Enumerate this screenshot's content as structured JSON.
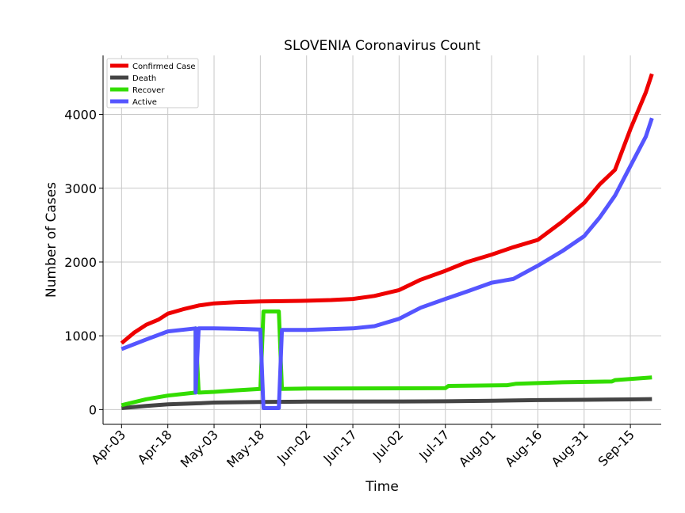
{
  "chart_data": {
    "type": "line",
    "title": "SLOVENIA Coronavirus Count",
    "xlabel": "Time",
    "ylabel": "Number of Cases",
    "ylim": [
      -200,
      4800
    ],
    "xlim": [
      "2020-03-28",
      "2020-09-25"
    ],
    "grid": true,
    "legend": "top-left",
    "x_ticks": [
      "2020-04-03",
      "2020-04-18",
      "2020-05-03",
      "2020-05-18",
      "2020-06-02",
      "2020-06-17",
      "2020-07-02",
      "2020-07-17",
      "2020-08-01",
      "2020-08-16",
      "2020-08-31",
      "2020-09-15"
    ],
    "x_tick_labels": [
      "Apr-03",
      "Apr-18",
      "May-03",
      "May-18",
      "Jun-02",
      "Jun-17",
      "Jul-02",
      "Jul-17",
      "Aug-01",
      "Aug-16",
      "Aug-31",
      "Sep-15"
    ],
    "y_ticks": [
      0,
      1000,
      2000,
      3000,
      4000
    ],
    "y_tick_labels": [
      "0",
      "1000",
      "2000",
      "3000",
      "4000"
    ],
    "series": [
      {
        "name": "Confirmed Case",
        "color": "#ee0000",
        "points": [
          [
            "2020-04-03",
            900
          ],
          [
            "2020-04-07",
            1040
          ],
          [
            "2020-04-11",
            1150
          ],
          [
            "2020-04-15",
            1220
          ],
          [
            "2020-04-18",
            1300
          ],
          [
            "2020-04-23",
            1360
          ],
          [
            "2020-04-28",
            1410
          ],
          [
            "2020-05-03",
            1440
          ],
          [
            "2020-05-10",
            1455
          ],
          [
            "2020-05-18",
            1465
          ],
          [
            "2020-05-25",
            1470
          ],
          [
            "2020-06-02",
            1475
          ],
          [
            "2020-06-10",
            1485
          ],
          [
            "2020-06-17",
            1500
          ],
          [
            "2020-06-24",
            1540
          ],
          [
            "2020-07-02",
            1620
          ],
          [
            "2020-07-09",
            1760
          ],
          [
            "2020-07-17",
            1880
          ],
          [
            "2020-07-24",
            2000
          ],
          [
            "2020-08-01",
            2100
          ],
          [
            "2020-08-08",
            2200
          ],
          [
            "2020-08-16",
            2300
          ],
          [
            "2020-08-24",
            2550
          ],
          [
            "2020-08-31",
            2800
          ],
          [
            "2020-09-05",
            3050
          ],
          [
            "2020-09-10",
            3250
          ],
          [
            "2020-09-15",
            3800
          ],
          [
            "2020-09-20",
            4300
          ],
          [
            "2020-09-22",
            4550
          ]
        ]
      },
      {
        "name": "Death",
        "color": "#444444",
        "points": [
          [
            "2020-04-03",
            20
          ],
          [
            "2020-04-11",
            50
          ],
          [
            "2020-04-18",
            70
          ],
          [
            "2020-04-28",
            85
          ],
          [
            "2020-05-03",
            95
          ],
          [
            "2020-05-18",
            104
          ],
          [
            "2020-06-02",
            108
          ],
          [
            "2020-07-02",
            110
          ],
          [
            "2020-07-17",
            112
          ],
          [
            "2020-08-01",
            120
          ],
          [
            "2020-08-16",
            128
          ],
          [
            "2020-08-31",
            133
          ],
          [
            "2020-09-15",
            138
          ],
          [
            "2020-09-22",
            142
          ]
        ]
      },
      {
        "name": "Recover",
        "color": "#33dd00",
        "points": [
          [
            "2020-04-03",
            60
          ],
          [
            "2020-04-11",
            140
          ],
          [
            "2020-04-18",
            190
          ],
          [
            "2020-04-27",
            230
          ],
          [
            "2020-04-27",
            1100
          ],
          [
            "2020-04-28",
            230
          ],
          [
            "2020-05-03",
            240
          ],
          [
            "2020-05-10",
            260
          ],
          [
            "2020-05-18",
            280
          ],
          [
            "2020-05-19",
            1330
          ],
          [
            "2020-05-24",
            1330
          ],
          [
            "2020-05-25",
            280
          ],
          [
            "2020-06-02",
            285
          ],
          [
            "2020-07-17",
            290
          ],
          [
            "2020-07-18",
            320
          ],
          [
            "2020-08-06",
            330
          ],
          [
            "2020-08-09",
            350
          ],
          [
            "2020-08-24",
            370
          ],
          [
            "2020-09-09",
            380
          ],
          [
            "2020-09-10",
            400
          ],
          [
            "2020-09-22",
            435
          ]
        ]
      },
      {
        "name": "Active",
        "color": "#5555ff",
        "points": [
          [
            "2020-04-03",
            820
          ],
          [
            "2020-04-11",
            950
          ],
          [
            "2020-04-18",
            1060
          ],
          [
            "2020-04-27",
            1100
          ],
          [
            "2020-04-27",
            230
          ],
          [
            "2020-04-28",
            1100
          ],
          [
            "2020-05-03",
            1100
          ],
          [
            "2020-05-10",
            1095
          ],
          [
            "2020-05-18",
            1085
          ],
          [
            "2020-05-19",
            20
          ],
          [
            "2020-05-24",
            20
          ],
          [
            "2020-05-25",
            1080
          ],
          [
            "2020-06-02",
            1080
          ],
          [
            "2020-06-17",
            1100
          ],
          [
            "2020-06-24",
            1130
          ],
          [
            "2020-07-02",
            1230
          ],
          [
            "2020-07-09",
            1380
          ],
          [
            "2020-07-17",
            1500
          ],
          [
            "2020-07-24",
            1600
          ],
          [
            "2020-08-01",
            1720
          ],
          [
            "2020-08-08",
            1770
          ],
          [
            "2020-08-16",
            1950
          ],
          [
            "2020-08-24",
            2150
          ],
          [
            "2020-08-31",
            2350
          ],
          [
            "2020-09-05",
            2600
          ],
          [
            "2020-09-10",
            2900
          ],
          [
            "2020-09-15",
            3300
          ],
          [
            "2020-09-20",
            3700
          ],
          [
            "2020-09-22",
            3950
          ]
        ]
      }
    ]
  }
}
